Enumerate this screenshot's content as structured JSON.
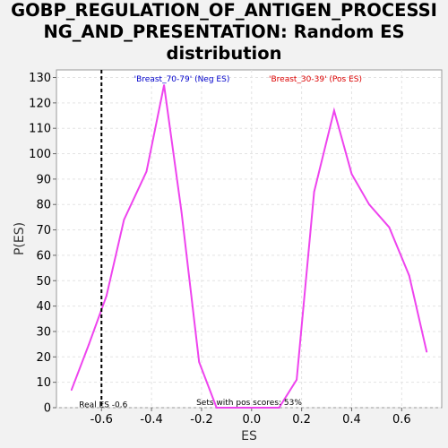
{
  "chart_data": {
    "type": "line",
    "title_lines": [
      "GOBP_REGULATION_OF_ANTIGEN_PROCESSI",
      "NG_AND_PRESENTATION: Random ES",
      "distribution"
    ],
    "xlabel": "ES",
    "ylabel": "P(ES)",
    "xlim": [
      -0.78,
      0.76
    ],
    "ylim": [
      0,
      133
    ],
    "xticks": [
      -0.6,
      -0.4,
      -0.2,
      0.0,
      0.2,
      0.4,
      0.6
    ],
    "xtick_labels": [
      "-0.6",
      "-0.4",
      "-0.2",
      "0.0",
      "0.2",
      "0.4",
      "0.6"
    ],
    "yticks": [
      0,
      10,
      20,
      30,
      40,
      50,
      60,
      70,
      80,
      90,
      100,
      110,
      120,
      130
    ],
    "ytick_labels": [
      "0",
      "10",
      "20",
      "30",
      "40",
      "50",
      "60",
      "70",
      "80",
      "90",
      "100",
      "110",
      "120",
      "130"
    ],
    "grid": true,
    "series": [
      {
        "color": "#ee44ee",
        "x": [
          -0.72,
          -0.65,
          -0.58,
          -0.51,
          -0.42,
          -0.35,
          -0.28,
          -0.21,
          -0.14,
          -0.07,
          0.0,
          0.06,
          0.11,
          0.18,
          0.25,
          0.33,
          0.4,
          0.47,
          0.55,
          0.63,
          0.7
        ],
        "y": [
          7,
          25,
          44,
          74,
          93,
          127,
          77,
          18,
          0,
          0,
          0,
          0,
          0,
          11,
          85,
          117,
          92,
          80,
          71,
          52,
          22
        ]
      }
    ],
    "real_es": {
      "x": -0.6,
      "label": "Real ES -0.6"
    },
    "annotations": {
      "neg_label": "'Breast_70-79' (Neg ES)",
      "pos_label": "'Breast_30-39' (Pos ES)",
      "pos_scores": "Sets with pos scores: 53%"
    },
    "colors": {
      "neg": "#0000cc",
      "pos": "#dd0000",
      "line": "#ee44ee",
      "real_es_line": "#000000"
    }
  }
}
